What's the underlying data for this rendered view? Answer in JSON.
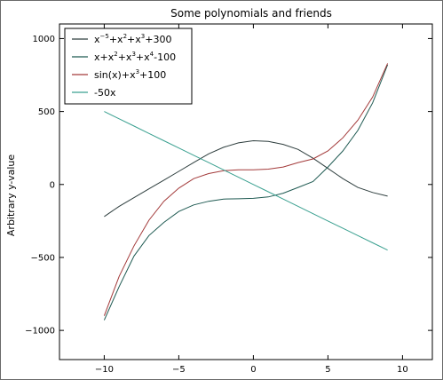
{
  "chart_data": {
    "type": "line",
    "title": "Some polynomials and friends",
    "xlabel": "",
    "ylabel": "Arbitrary y-value",
    "xlim": [
      -13,
      12
    ],
    "ylim": [
      -1200,
      1100
    ],
    "xticks": [
      -10,
      -5,
      0,
      5,
      10
    ],
    "xtick_labels": [
      "−10",
      "−5",
      "0",
      "5",
      "10"
    ],
    "yticks": [
      -1000,
      -500,
      0,
      500,
      1000
    ],
    "ytick_labels": [
      "−1000",
      "−500",
      "0",
      "500",
      "1000"
    ],
    "grid": false,
    "legend_position": "top-left",
    "x": [
      -10,
      -9,
      -8,
      -7,
      -6,
      -5,
      -4,
      -3,
      -2,
      -1,
      0,
      1,
      2,
      3,
      4,
      5,
      6,
      7,
      8,
      9
    ],
    "series": [
      {
        "name": "x⁻⁵+x²+x³+300",
        "legend_parts": [
          "x",
          "−5",
          "+x",
          "2",
          "+x",
          "3",
          "+300"
        ],
        "color": "#2e3e3e",
        "values": [
          -220,
          -150,
          -90,
          -30,
          30,
          90,
          150,
          210,
          255,
          285,
          300,
          295,
          275,
          240,
          180,
          110,
          40,
          -20,
          -55,
          -80
        ]
      },
      {
        "name": "x+x²+x³+x⁴-100",
        "legend_parts": [
          "x+x",
          "2",
          "+x",
          "3",
          "+x",
          "4",
          "-100"
        ],
        "color": "#1f5a52",
        "values": [
          -930,
          -700,
          -490,
          -350,
          -260,
          -185,
          -140,
          -115,
          -100,
          -98,
          -95,
          -85,
          -60,
          -20,
          20,
          120,
          230,
          370,
          560,
          820
        ]
      },
      {
        "name": "sin(x)+x³+100",
        "legend_parts": [
          "sin(x)+x",
          "3",
          "+100"
        ],
        "color": "#a33a3a",
        "values": [
          -900,
          -630,
          -420,
          -245,
          -115,
          -25,
          40,
          75,
          95,
          100,
          100,
          105,
          120,
          150,
          175,
          230,
          320,
          440,
          600,
          830
        ]
      },
      {
        "name": "-50x",
        "legend_parts": [
          "-50x"
        ],
        "color": "#3aa090",
        "values": [
          500,
          450,
          400,
          350,
          300,
          250,
          200,
          150,
          100,
          50,
          0,
          -50,
          -100,
          -150,
          -200,
          -250,
          -300,
          -350,
          -400,
          -450
        ]
      }
    ]
  }
}
